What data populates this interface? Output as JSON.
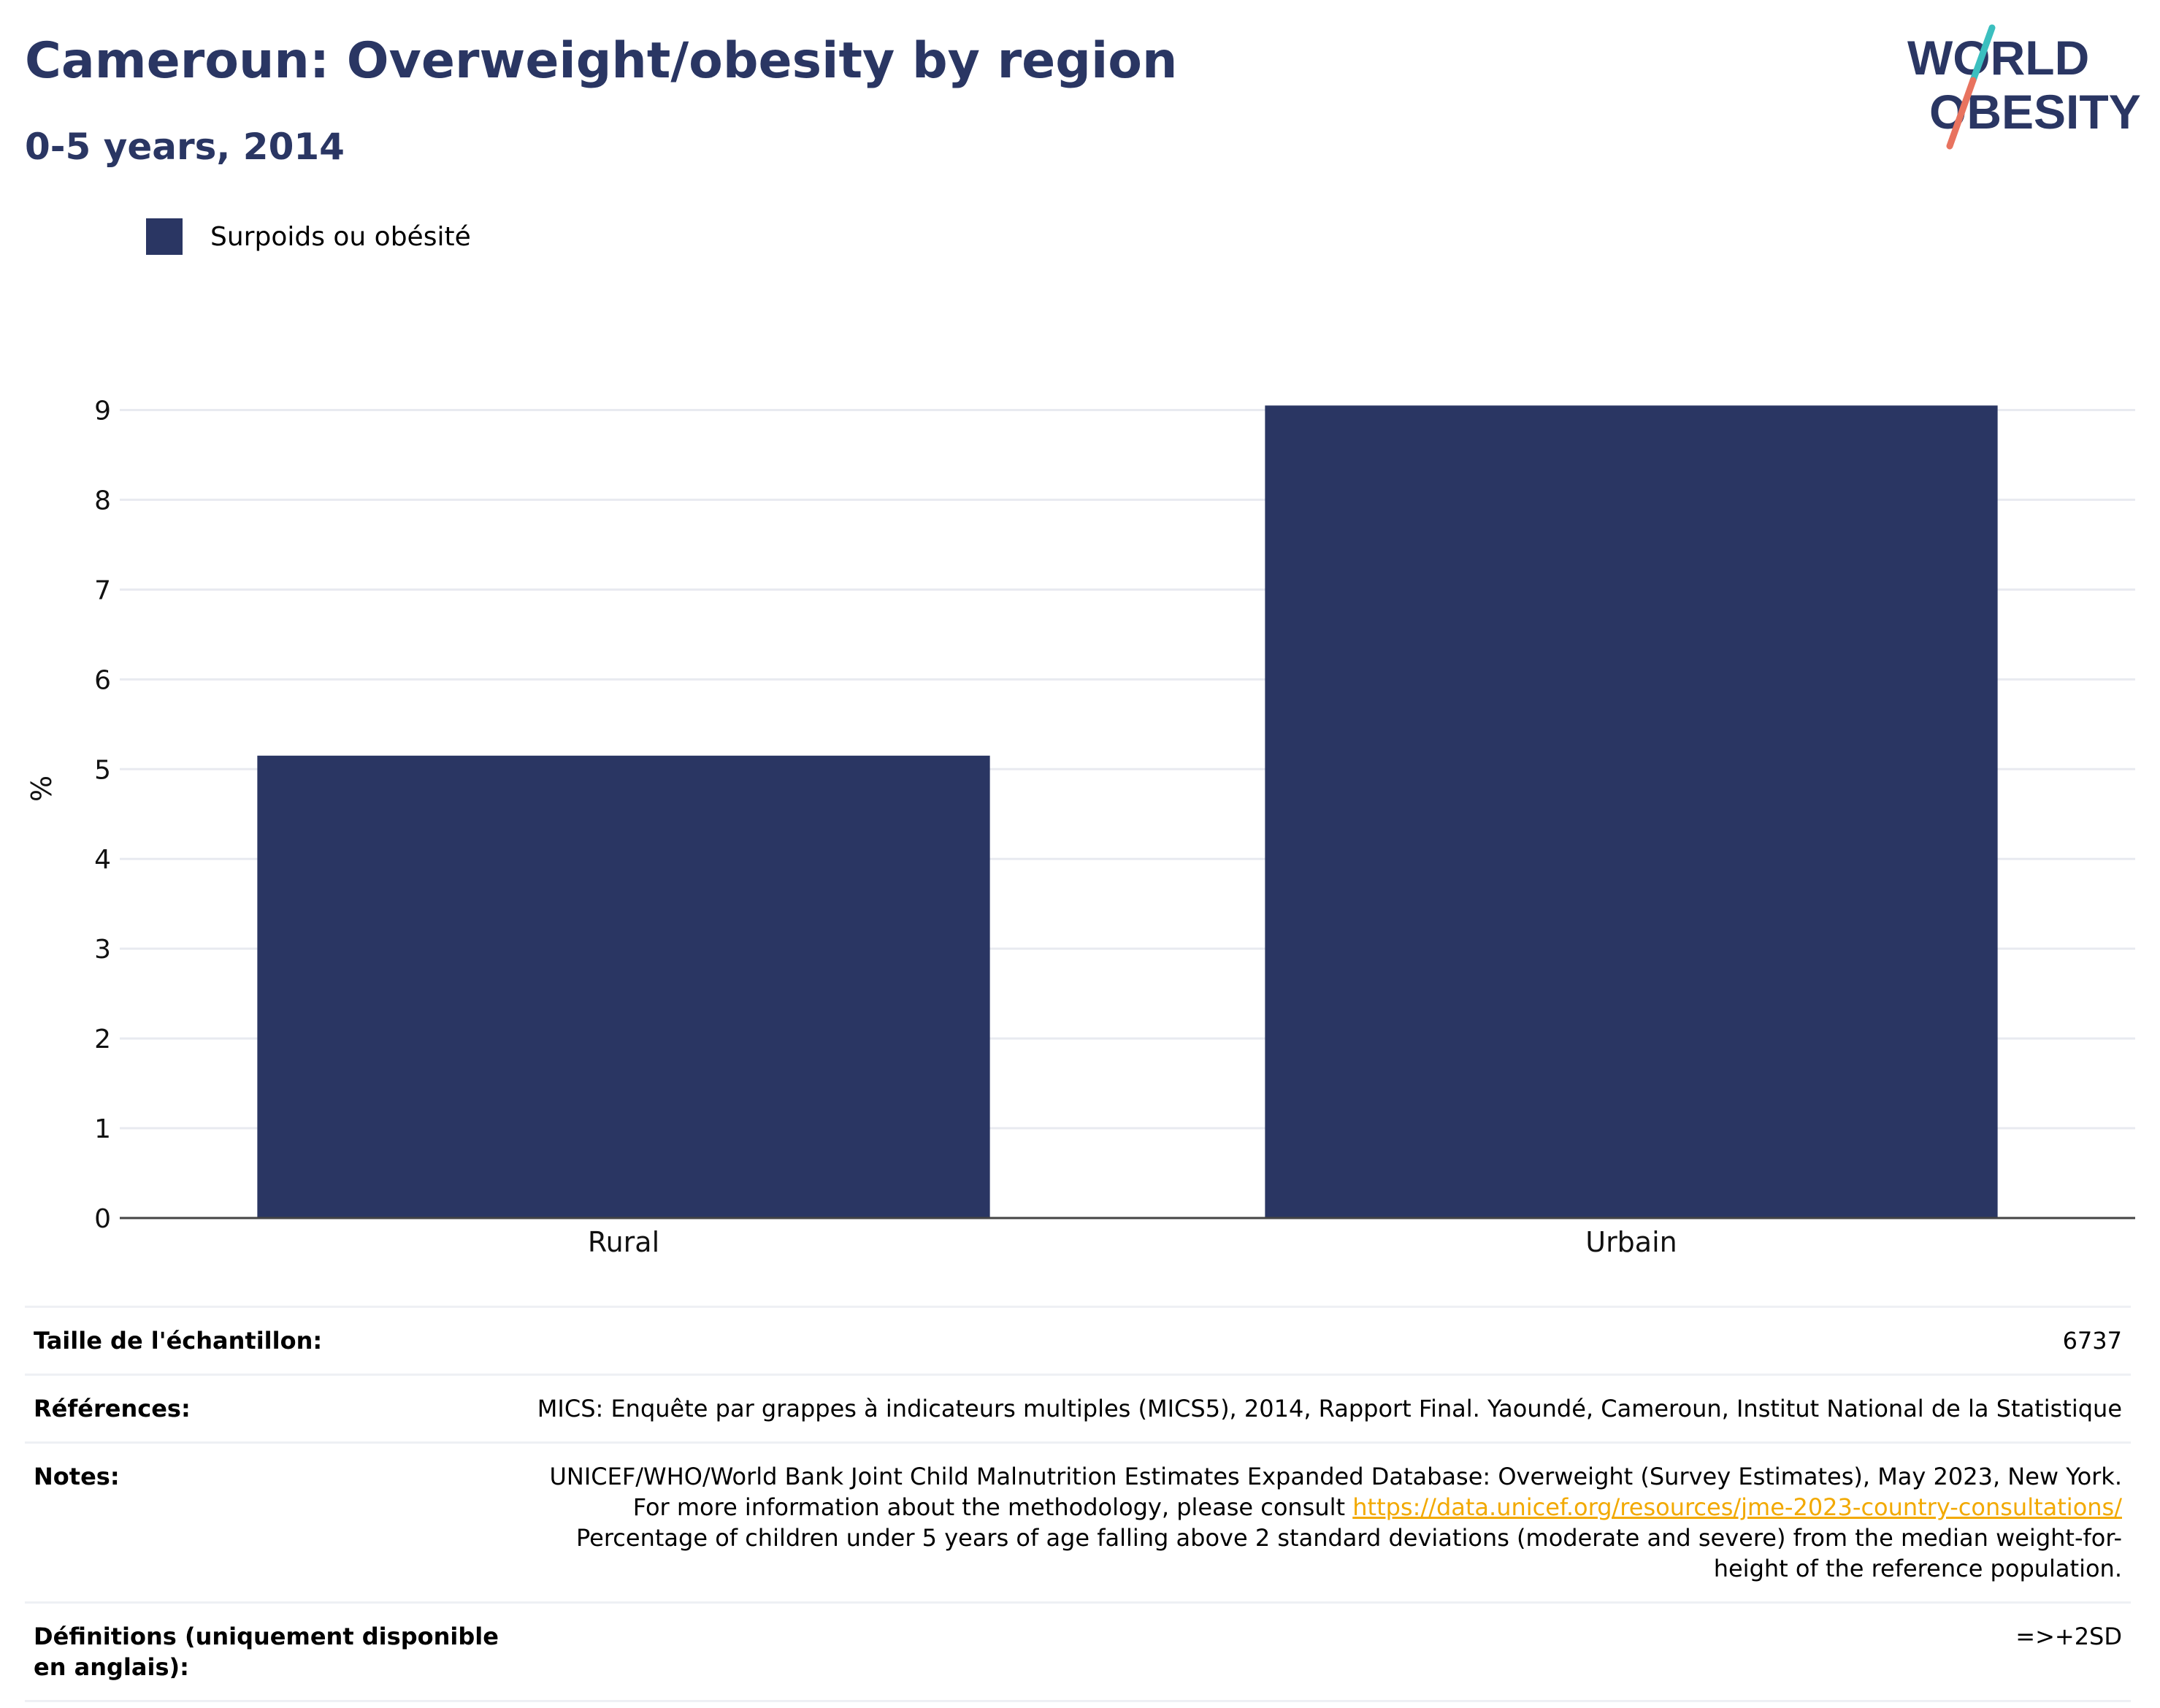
{
  "header": {
    "title": "Cameroun: Overweight/obesity by region",
    "subtitle": "0-5 years, 2014"
  },
  "logo": {
    "line1": "WORLD",
    "line2": "OBESITY",
    "colors": {
      "text": "#2a3663",
      "slash_top": "#3bbfbf",
      "slash_bottom": "#e8735f"
    }
  },
  "colors": {
    "bar": "#2a3663",
    "grid": "#e8eaf0",
    "axis": "#444444",
    "link": "#f2a900"
  },
  "chart_data": {
    "type": "bar",
    "categories": [
      "Rural",
      "Urbain"
    ],
    "series": [
      {
        "name": "Surpoids ou obésité",
        "values": [
          5.15,
          9.05
        ]
      }
    ],
    "ylabel": "%",
    "xlabel": "",
    "ylim": [
      0,
      9.5
    ],
    "yticks": [
      0,
      1,
      2,
      3,
      4,
      5,
      6,
      7,
      8,
      9
    ],
    "grid": true,
    "legend": "top-left"
  },
  "info": {
    "sample_label": "Taille de l'échantillon:",
    "sample_value": "6737",
    "references_label": "Références:",
    "references_value": "MICS: Enquête par grappes à indicateurs multiples (MICS5), 2014, Rapport Final. Yaoundé, Cameroun, Institut National de la Statistique",
    "notes_label": "Notes:",
    "notes_text1": "UNICEF/WHO/World Bank Joint Child Malnutrition Estimates Expanded Database: Overweight (Survey Estimates), May 2023, New York. For more information about the methodology, please consult ",
    "notes_link": "https://data.unicef.org/resources/jme-2023-country-consultations/",
    "notes_text2": "Percentage of children under 5 years of age falling above 2 standard deviations (moderate and severe) from the median weight-for-height of the reference population.",
    "definitions_label": "Définitions (uniquement disponible en anglais):",
    "definitions_value": "=>+2SD"
  }
}
